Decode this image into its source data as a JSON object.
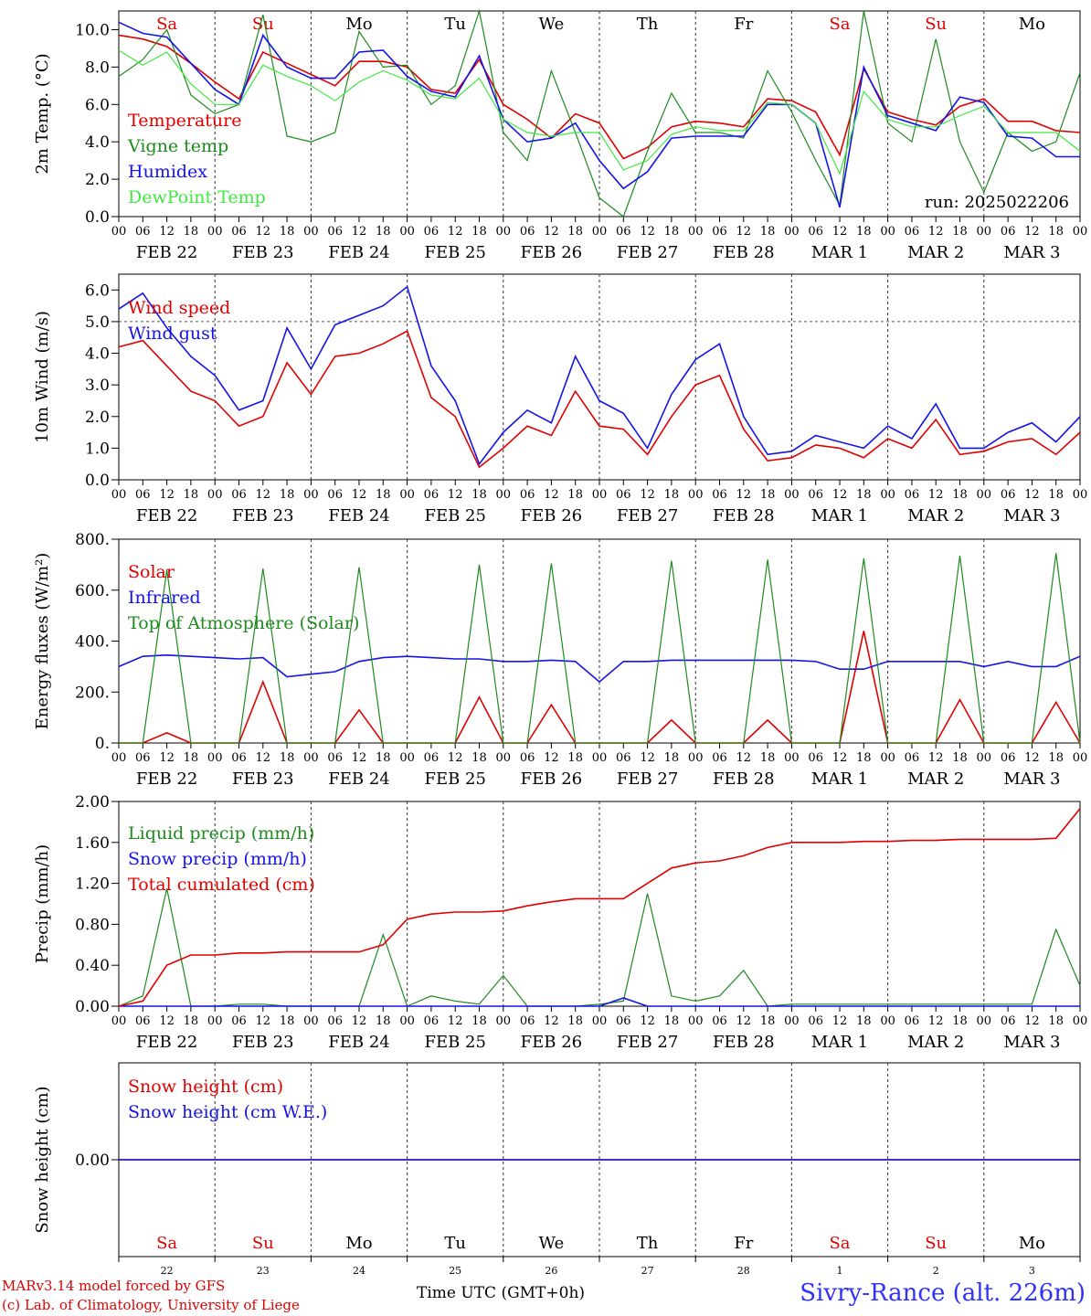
{
  "colors": {
    "red": "#e00000",
    "dark_green": "#1e8a1e",
    "blue": "#1414e6",
    "light_green": "#40e840",
    "grey": "#777777"
  },
  "days": {
    "weekdays": [
      "Sa",
      "Su",
      "Mo",
      "Tu",
      "We",
      "Th",
      "Fr",
      "Sa",
      "Su",
      "Mo"
    ],
    "weekend": [
      true,
      true,
      false,
      false,
      false,
      false,
      false,
      true,
      true,
      false
    ],
    "dates": [
      "FEB 22",
      "FEB 23",
      "FEB 24",
      "FEB 25",
      "FEB 26",
      "FEB 27",
      "FEB 28",
      "MAR 1",
      "MAR 2",
      "MAR 3"
    ],
    "day_numbers": [
      "22",
      "23",
      "24",
      "25",
      "26",
      "27",
      "28",
      "1",
      "2",
      "3"
    ]
  },
  "hour_ticks": [
    "00",
    "06",
    "12",
    "18"
  ],
  "footer": {
    "model_credit": "MARv3.14 model forced by GFS",
    "lab_credit": "(c) Lab. of Climatology, University of Liege",
    "station": "Sivry-Rance (alt. 226m)",
    "x_axis_title": "Time UTC (GMT+0h)",
    "x_axis_title_overlay": "FEB",
    "x_axis_title_overlay2": "MAR"
  },
  "chart_data": [
    {
      "type": "line",
      "ylabel": "2m Temp. (°C)",
      "ylim": [
        0,
        11
      ],
      "yticks": [
        0.0,
        2.0,
        4.0,
        6.0,
        8.0,
        10.0
      ],
      "ytick_labels": [
        "0.0",
        "2.0",
        "4.0",
        "6.0",
        "8.0",
        "10.0"
      ],
      "annotation": "run: 2025022206",
      "show_weekdays": true,
      "x": [
        0,
        6,
        12,
        18,
        24,
        30,
        36,
        42,
        48,
        54,
        60,
        66,
        72,
        78,
        84,
        90,
        96,
        102,
        108,
        114,
        120,
        126,
        132,
        138,
        144,
        150,
        156,
        162,
        168,
        174,
        180,
        186,
        192,
        198,
        204,
        210,
        216,
        222,
        228,
        234,
        240
      ],
      "series": [
        {
          "name": "Temperature",
          "color": "red",
          "values": [
            9.7,
            9.5,
            9.1,
            8.2,
            7.2,
            6.3,
            8.8,
            8.2,
            7.6,
            7.0,
            8.3,
            8.3,
            8.0,
            6.8,
            6.6,
            8.4,
            6.0,
            5.2,
            4.2,
            5.5,
            5.0,
            3.1,
            3.7,
            4.8,
            5.1,
            5.0,
            4.8,
            6.3,
            6.2,
            5.6,
            3.3,
            7.9,
            5.6,
            5.2,
            4.9,
            5.9,
            6.3,
            5.1,
            5.1,
            4.6,
            4.5
          ]
        },
        {
          "name": "Vigne temp",
          "color": "dark_green",
          "values": [
            7.5,
            8.4,
            10.0,
            6.5,
            5.5,
            6.0,
            10.8,
            4.3,
            4.0,
            4.5,
            9.9,
            8.0,
            8.1,
            6.0,
            7.0,
            11.0,
            4.5,
            3.0,
            7.8,
            4.5,
            1.0,
            0.0,
            3.5,
            6.6,
            4.5,
            4.5,
            4.2,
            7.8,
            5.6,
            3.0,
            0.6,
            11.0,
            5.0,
            4.0,
            9.5,
            4.0,
            1.3,
            4.5,
            3.5,
            4.0,
            7.7
          ]
        },
        {
          "name": "Humidex",
          "color": "blue",
          "values": [
            10.4,
            9.8,
            9.6,
            8.2,
            6.8,
            6.0,
            9.7,
            8.0,
            7.4,
            7.4,
            8.8,
            8.9,
            7.5,
            6.7,
            6.4,
            8.6,
            5.2,
            4.0,
            4.2,
            5.0,
            3.0,
            1.5,
            2.4,
            4.2,
            4.3,
            4.3,
            4.3,
            6.0,
            6.0,
            5.0,
            0.5,
            8.0,
            5.4,
            5.0,
            4.6,
            6.4,
            6.1,
            4.3,
            4.2,
            3.2,
            3.2
          ]
        },
        {
          "name": "DewPoint Temp",
          "color": "light_green",
          "values": [
            8.9,
            8.1,
            8.8,
            7.1,
            6.0,
            6.0,
            8.1,
            7.5,
            7.0,
            6.2,
            7.2,
            7.8,
            7.3,
            6.5,
            6.3,
            7.4,
            5.2,
            4.5,
            4.3,
            4.5,
            4.5,
            2.5,
            3.0,
            4.4,
            4.8,
            4.6,
            4.6,
            6.1,
            6.0,
            5.0,
            2.3,
            6.7,
            5.2,
            4.8,
            4.8,
            5.4,
            5.9,
            4.5,
            4.5,
            4.5,
            3.5
          ]
        }
      ]
    },
    {
      "type": "line",
      "ylabel": "10m Wind (m/s)",
      "ylim": [
        0,
        6.5
      ],
      "yticks": [
        0.0,
        1.0,
        2.0,
        3.0,
        4.0,
        5.0,
        6.0
      ],
      "ytick_labels": [
        "0.0",
        "1.0",
        "2.0",
        "3.0",
        "4.0",
        "5.0",
        "6.0"
      ],
      "reference_line": 5.0,
      "x": [
        0,
        6,
        12,
        18,
        24,
        30,
        36,
        42,
        48,
        54,
        60,
        66,
        72,
        78,
        84,
        90,
        96,
        102,
        108,
        114,
        120,
        126,
        132,
        138,
        144,
        150,
        156,
        162,
        168,
        174,
        180,
        186,
        192,
        198,
        204,
        210,
        216,
        222,
        228,
        234,
        240
      ],
      "series": [
        {
          "name": "Wind speed",
          "color": "red",
          "values": [
            4.2,
            4.4,
            3.6,
            2.8,
            2.5,
            1.7,
            2.0,
            3.7,
            2.7,
            3.9,
            4.0,
            4.3,
            4.7,
            2.6,
            2.0,
            0.4,
            1.0,
            1.7,
            1.4,
            2.8,
            1.7,
            1.6,
            0.8,
            2.0,
            3.0,
            3.3,
            1.6,
            0.6,
            0.7,
            1.1,
            1.0,
            0.7,
            1.3,
            1.0,
            1.9,
            0.8,
            0.9,
            1.2,
            1.3,
            0.8,
            1.5
          ]
        },
        {
          "name": "Wind gust",
          "color": "blue",
          "values": [
            5.4,
            5.9,
            4.8,
            3.9,
            3.3,
            2.2,
            2.5,
            4.8,
            3.5,
            4.9,
            5.2,
            5.5,
            6.1,
            3.6,
            2.5,
            0.5,
            1.5,
            2.2,
            1.8,
            3.9,
            2.5,
            2.1,
            1.0,
            2.7,
            3.8,
            4.3,
            2.0,
            0.8,
            0.9,
            1.4,
            1.2,
            1.0,
            1.7,
            1.3,
            2.4,
            1.0,
            1.0,
            1.5,
            1.8,
            1.2,
            2.0
          ]
        }
      ]
    },
    {
      "type": "line",
      "ylabel": "Energy fluxes (W/m²)",
      "ylim": [
        0,
        800
      ],
      "yticks": [
        0,
        200,
        400,
        600,
        800
      ],
      "ytick_labels": [
        "0.",
        "200.",
        "400.",
        "600.",
        "800."
      ],
      "x": [
        0,
        6,
        12,
        18,
        24,
        30,
        36,
        42,
        48,
        54,
        60,
        66,
        72,
        78,
        84,
        90,
        96,
        102,
        108,
        114,
        120,
        126,
        132,
        138,
        144,
        150,
        156,
        162,
        168,
        174,
        180,
        186,
        192,
        198,
        204,
        210,
        216,
        222,
        228,
        234,
        240
      ],
      "series": [
        {
          "name": "Solar",
          "color": "red",
          "values": [
            0,
            0,
            40,
            0,
            0,
            0,
            240,
            0,
            0,
            0,
            130,
            0,
            0,
            0,
            0,
            180,
            0,
            0,
            150,
            0,
            0,
            0,
            0,
            90,
            0,
            0,
            0,
            90,
            0,
            0,
            0,
            440,
            0,
            0,
            0,
            170,
            0,
            0,
            0,
            160,
            0
          ]
        },
        {
          "name": "Infrared",
          "color": "blue",
          "values": [
            300,
            340,
            345,
            340,
            335,
            330,
            335,
            260,
            270,
            280,
            320,
            335,
            340,
            335,
            330,
            330,
            320,
            320,
            325,
            320,
            240,
            320,
            320,
            325,
            325,
            325,
            325,
            325,
            325,
            320,
            290,
            290,
            320,
            320,
            320,
            320,
            300,
            320,
            300,
            300,
            340
          ]
        },
        {
          "name": "Top of Atmosphere (Solar)",
          "color": "dark_green",
          "values": [
            0,
            0,
            680,
            0,
            0,
            0,
            685,
            0,
            0,
            0,
            690,
            0,
            0,
            0,
            0,
            700,
            0,
            0,
            705,
            0,
            0,
            0,
            0,
            715,
            0,
            0,
            0,
            720,
            0,
            0,
            0,
            725,
            0,
            0,
            0,
            735,
            0,
            0,
            0,
            745,
            0
          ]
        }
      ]
    },
    {
      "type": "line",
      "ylabel": "Precip (mm/h)",
      "ylim": [
        0,
        2.0
      ],
      "yticks": [
        0.0,
        0.4,
        0.8,
        1.2,
        1.6,
        2.0
      ],
      "ytick_labels": [
        "0.00",
        "0.40",
        "0.80",
        "1.20",
        "1.60",
        "2.00"
      ],
      "x": [
        0,
        6,
        12,
        18,
        24,
        30,
        36,
        42,
        48,
        54,
        60,
        66,
        72,
        78,
        84,
        90,
        96,
        102,
        108,
        114,
        120,
        126,
        132,
        138,
        144,
        150,
        156,
        162,
        168,
        174,
        180,
        186,
        192,
        198,
        204,
        210,
        216,
        222,
        228,
        234,
        240
      ],
      "series": [
        {
          "name": "Liquid precip (mm/h)",
          "color": "dark_green",
          "values": [
            0,
            0.1,
            1.15,
            0,
            0,
            0.02,
            0.02,
            0,
            0,
            0,
            0,
            0.7,
            0,
            0.1,
            0.05,
            0.02,
            0.3,
            0,
            0,
            0,
            0.02,
            0.05,
            1.1,
            0.1,
            0.05,
            0.1,
            0.35,
            0,
            0.02,
            0.02,
            0.02,
            0.02,
            0.02,
            0.02,
            0.02,
            0.02,
            0.02,
            0.02,
            0.02,
            0.75,
            0.2
          ]
        },
        {
          "name": "Snow precip (mm/h)",
          "color": "blue",
          "values": [
            0,
            0,
            0,
            0,
            0,
            0,
            0,
            0,
            0,
            0,
            0,
            0,
            0,
            0,
            0,
            0,
            0,
            0,
            0,
            0,
            0,
            0.08,
            0,
            0,
            0,
            0,
            0,
            0,
            0,
            0,
            0,
            0,
            0,
            0,
            0,
            0,
            0,
            0,
            0,
            0,
            0
          ]
        },
        {
          "name": "Total cumulated (cm)",
          "color": "red",
          "values": [
            0,
            0.05,
            0.4,
            0.5,
            0.5,
            0.52,
            0.52,
            0.53,
            0.53,
            0.53,
            0.53,
            0.6,
            0.85,
            0.9,
            0.92,
            0.92,
            0.93,
            0.98,
            1.02,
            1.05,
            1.05,
            1.05,
            1.2,
            1.35,
            1.4,
            1.42,
            1.47,
            1.55,
            1.6,
            1.6,
            1.6,
            1.61,
            1.61,
            1.62,
            1.62,
            1.63,
            1.63,
            1.63,
            1.63,
            1.64,
            1.93
          ]
        }
      ]
    },
    {
      "type": "line",
      "ylabel": "Snow height (cm)",
      "ylim": [
        -1,
        1
      ],
      "yticks": [
        0.0
      ],
      "ytick_labels": [
        "0.00"
      ],
      "bottom_panel": true,
      "x": [
        0,
        240
      ],
      "series": [
        {
          "name": "Snow height (cm)",
          "color": "red",
          "values": [
            0,
            0
          ]
        },
        {
          "name": "Snow height (cm W.E.)",
          "color": "blue",
          "values": [
            0,
            0
          ]
        }
      ]
    }
  ]
}
